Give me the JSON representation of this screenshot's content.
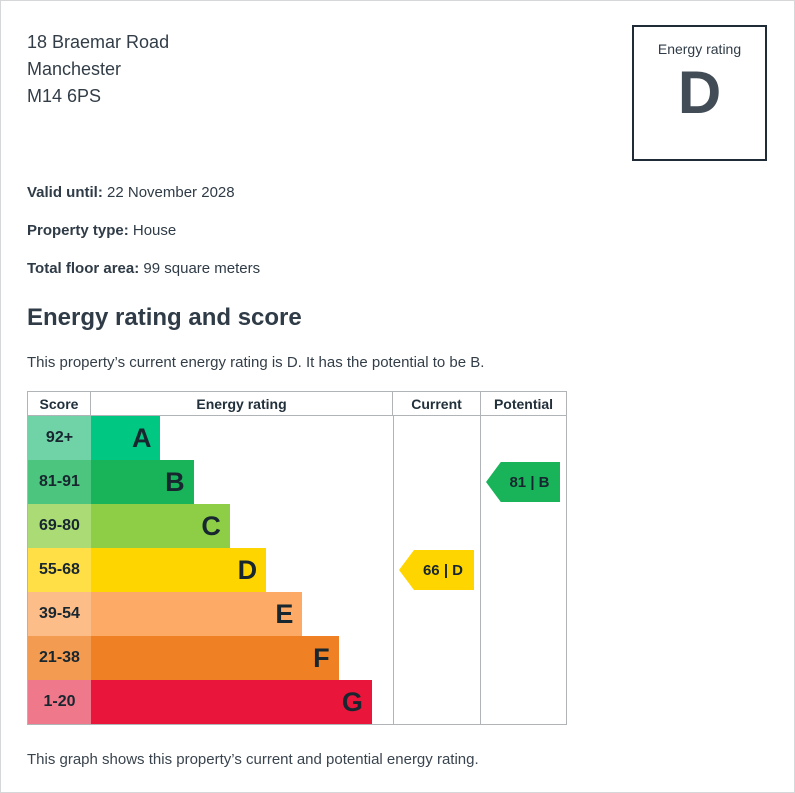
{
  "header": {
    "address_lines": [
      "18 Braemar Road",
      "Manchester",
      "M14 6PS"
    ],
    "rating_box": {
      "label": "Energy rating",
      "value": "D"
    }
  },
  "facts": {
    "valid_until_label": "Valid until:",
    "valid_until_value": " 22 November 2028",
    "property_type_label": "Property type:",
    "property_type_value": " House",
    "floor_area_label": "Total floor area:",
    "floor_area_value": " 99 square meters"
  },
  "section": {
    "title": "Energy rating and score",
    "intro": "This property’s current energy rating is D. It has the potential to be B.",
    "caption": "This graph shows this property’s current and potential energy rating."
  },
  "chart_data": {
    "type": "bar",
    "title": "Energy rating and score",
    "headers": [
      "Score",
      "Energy rating",
      "Current",
      "Potential"
    ],
    "bands": [
      {
        "score": "92+",
        "letter": "A",
        "bar_color": "#00c781",
        "score_bg": "#6fd3a7",
        "width_pct": 23
      },
      {
        "score": "81-91",
        "letter": "B",
        "bar_color": "#19b459",
        "score_bg": "#4cc57e",
        "width_pct": 34
      },
      {
        "score": "69-80",
        "letter": "C",
        "bar_color": "#8dce46",
        "score_bg": "#aadb74",
        "width_pct": 46
      },
      {
        "score": "55-68",
        "letter": "D",
        "bar_color": "#ffd500",
        "score_bg": "#ffdf45",
        "width_pct": 58
      },
      {
        "score": "39-54",
        "letter": "E",
        "bar_color": "#fcaa65",
        "score_bg": "#fdbd88",
        "width_pct": 70
      },
      {
        "score": "21-38",
        "letter": "F",
        "bar_color": "#ef8023",
        "score_bg": "#f39c51",
        "width_pct": 82
      },
      {
        "score": "1-20",
        "letter": "G",
        "bar_color": "#e9153b",
        "score_bg": "#f0788b",
        "width_pct": 93
      }
    ],
    "current": {
      "score": 66,
      "band": "D",
      "label": "66 | D",
      "color": "#ffd500"
    },
    "potential": {
      "score": 81,
      "band": "B",
      "label": "81 | B",
      "color": "#19b459"
    }
  }
}
